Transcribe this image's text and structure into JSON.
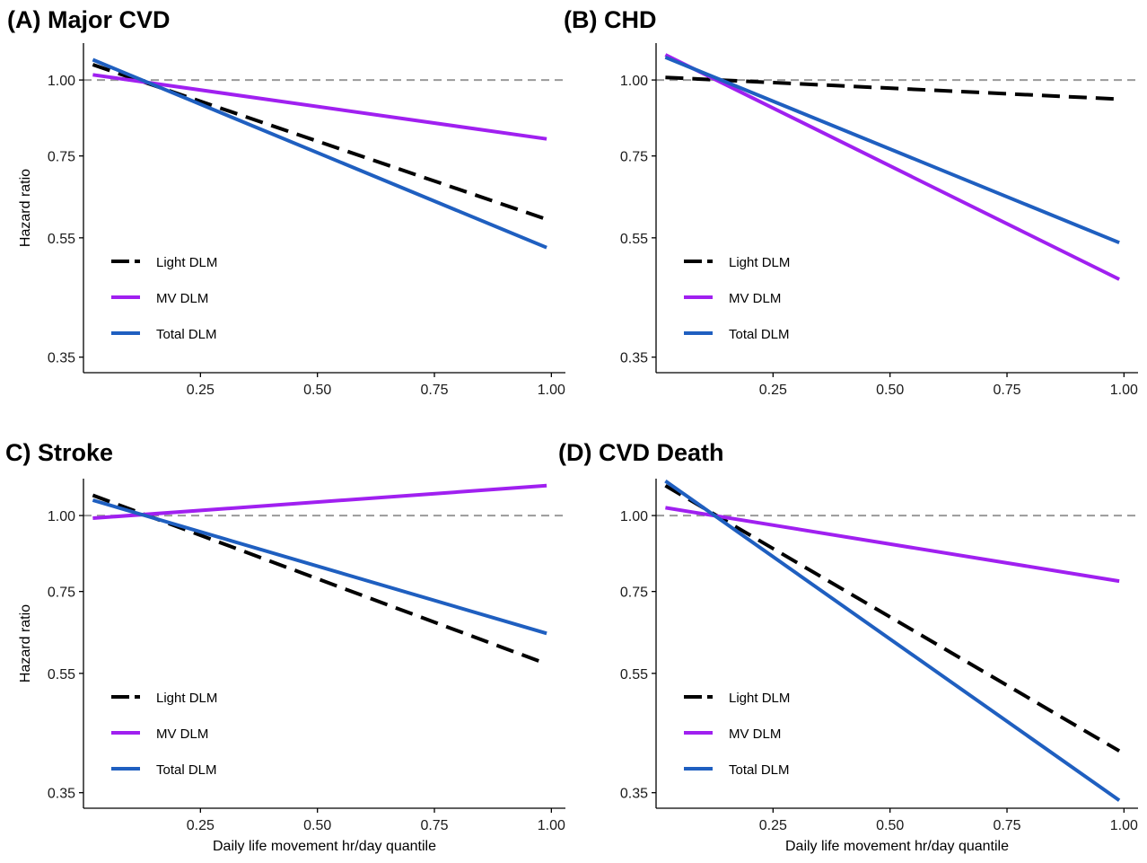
{
  "figure": {
    "xlabel": "Daily life movement hr/day quantile",
    "ylabel": "Hazard ratio"
  },
  "chart_data": [
    {
      "type": "line",
      "title": "(A) Major CVD",
      "xlabel": "",
      "ylabel": "Hazard ratio",
      "x_ticks": [
        "0.25",
        "0.50",
        "0.75",
        "1.00"
      ],
      "y_ticks": [
        "0.35",
        "0.55",
        "0.75",
        "1.00"
      ],
      "y_scale": "log",
      "xlim": [
        0.0,
        1.03
      ],
      "ylim": [
        0.33,
        1.15
      ],
      "reference_line": 1.0,
      "legend_position": "bottom-left",
      "series": [
        {
          "name": "Light DLM",
          "color": "#000000",
          "dash": true,
          "x": [
            0.02,
            0.99
          ],
          "y": [
            1.06,
            0.59
          ]
        },
        {
          "name": "MV DLM",
          "color": "#a020f0",
          "dash": false,
          "x": [
            0.02,
            0.99
          ],
          "y": [
            1.02,
            0.8
          ]
        },
        {
          "name": "Total DLM",
          "color": "#1f5fc0",
          "dash": false,
          "x": [
            0.02,
            0.99
          ],
          "y": [
            1.08,
            0.53
          ]
        }
      ]
    },
    {
      "type": "line",
      "title": "(B) CHD",
      "xlabel": "",
      "ylabel": "",
      "x_ticks": [
        "0.25",
        "0.50",
        "0.75",
        "1.00"
      ],
      "y_ticks": [
        "0.35",
        "0.55",
        "0.75",
        "1.00"
      ],
      "y_scale": "log",
      "xlim": [
        0.0,
        1.03
      ],
      "ylim": [
        0.33,
        1.15
      ],
      "reference_line": 1.0,
      "legend_position": "bottom-left",
      "series": [
        {
          "name": "Light DLM",
          "color": "#000000",
          "dash": true,
          "x": [
            0.02,
            0.99
          ],
          "y": [
            1.01,
            0.93
          ]
        },
        {
          "name": "MV DLM",
          "color": "#a020f0",
          "dash": false,
          "x": [
            0.02,
            0.99
          ],
          "y": [
            1.1,
            0.47
          ]
        },
        {
          "name": "Total DLM",
          "color": "#1f5fc0",
          "dash": false,
          "x": [
            0.02,
            0.99
          ],
          "y": [
            1.09,
            0.54
          ]
        }
      ]
    },
    {
      "type": "line",
      "title": "C) Stroke",
      "xlabel": "Daily life movement hr/day quantile",
      "ylabel": "Hazard ratio",
      "x_ticks": [
        "0.25",
        "0.50",
        "0.75",
        "1.00"
      ],
      "y_ticks": [
        "0.35",
        "0.55",
        "0.75",
        "1.00"
      ],
      "y_scale": "log",
      "xlim": [
        0.0,
        1.03
      ],
      "ylim": [
        0.33,
        1.15
      ],
      "reference_line": 1.0,
      "legend_position": "bottom-left",
      "series": [
        {
          "name": "Light DLM",
          "color": "#000000",
          "dash": true,
          "x": [
            0.02,
            0.99
          ],
          "y": [
            1.08,
            0.57
          ]
        },
        {
          "name": "MV DLM",
          "color": "#a020f0",
          "dash": false,
          "x": [
            0.02,
            0.99
          ],
          "y": [
            0.99,
            1.12
          ]
        },
        {
          "name": "Total DLM",
          "color": "#1f5fc0",
          "dash": false,
          "x": [
            0.02,
            0.99
          ],
          "y": [
            1.06,
            0.64
          ]
        }
      ]
    },
    {
      "type": "line",
      "title": "(D) CVD Death",
      "xlabel": "Daily life movement hr/day quantile",
      "ylabel": "",
      "x_ticks": [
        "0.25",
        "0.50",
        "0.75",
        "1.00"
      ],
      "y_ticks": [
        "0.35",
        "0.55",
        "0.75",
        "1.00"
      ],
      "y_scale": "log",
      "xlim": [
        0.0,
        1.03
      ],
      "ylim": [
        0.33,
        1.15
      ],
      "reference_line": 1.0,
      "legend_position": "bottom-left",
      "series": [
        {
          "name": "Light DLM",
          "color": "#000000",
          "dash": true,
          "x": [
            0.02,
            0.99
          ],
          "y": [
            1.12,
            0.41
          ]
        },
        {
          "name": "MV DLM",
          "color": "#a020f0",
          "dash": false,
          "x": [
            0.02,
            0.99
          ],
          "y": [
            1.03,
            0.78
          ]
        },
        {
          "name": "Total DLM",
          "color": "#1f5fc0",
          "dash": false,
          "x": [
            0.02,
            0.99
          ],
          "y": [
            1.14,
            0.34
          ]
        }
      ]
    }
  ]
}
